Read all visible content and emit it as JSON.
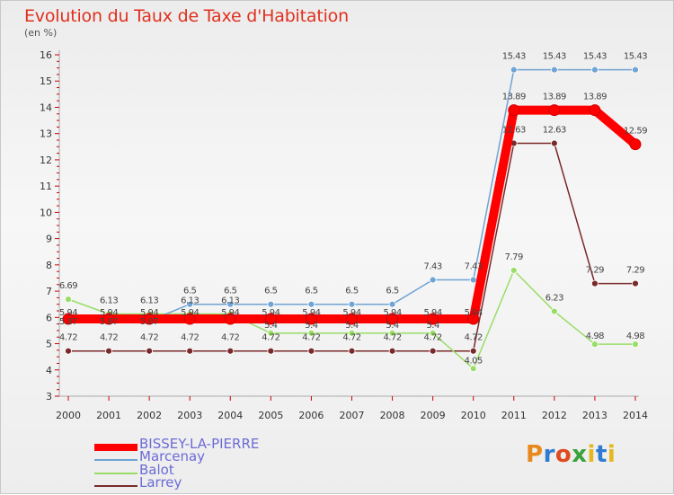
{
  "title": "Evolution du Taux de Taxe d'Habitation",
  "unit_label": "(en %)",
  "logo_text": "Proxiti",
  "chart_data": {
    "type": "line",
    "title": "Evolution du Taux de Taxe d'Habitation",
    "ylabel": "(en %)",
    "xlabel": "",
    "ylim": [
      3,
      16
    ],
    "yticks": [
      3,
      4,
      5,
      6,
      7,
      8,
      9,
      10,
      11,
      12,
      13,
      14,
      15,
      16
    ],
    "grid": false,
    "legend_position": "bottom-left",
    "categories": [
      "2000",
      "2001",
      "2002",
      "2003",
      "2004",
      "2005",
      "2006",
      "2007",
      "2008",
      "2009",
      "2010",
      "2011",
      "2012",
      "2013",
      "2014"
    ],
    "series": [
      {
        "name": "BISSEY-LA-PIERRE",
        "color": "#ff0000",
        "values": [
          5.94,
          5.94,
          5.94,
          5.94,
          5.94,
          5.94,
          5.94,
          5.94,
          5.94,
          5.94,
          5.94,
          13.89,
          13.89,
          13.89,
          12.59
        ],
        "labels": [
          "5.94",
          "5.94",
          "5.94",
          "5.94",
          "5.94",
          "5.94",
          "5.94",
          "5.94",
          "5.94",
          "5.94",
          "5.94",
          "13.89",
          "13.89",
          "13.89",
          "12.59"
        ]
      },
      {
        "name": "Marcenay",
        "color": "#6fa4d4",
        "values": [
          5.87,
          5.87,
          5.87,
          6.5,
          6.5,
          6.5,
          6.5,
          6.5,
          6.5,
          7.43,
          7.43,
          15.43,
          15.43,
          15.43,
          15.43
        ],
        "labels": [
          "5.87",
          "5.87",
          "5.87",
          "6.5",
          "6.5",
          "6.5",
          "6.5",
          "6.5",
          "6.5",
          "7.43",
          "7.43",
          "15.43",
          "15.43",
          "15.43",
          "15.43"
        ]
      },
      {
        "name": "Balot",
        "color": "#99dd66",
        "values": [
          6.69,
          6.13,
          6.13,
          6.13,
          6.13,
          5.4,
          5.4,
          5.4,
          5.4,
          5.4,
          4.05,
          7.79,
          6.23,
          4.98,
          4.98
        ],
        "labels": [
          "6.69",
          "6.13",
          "6.13",
          "6.13",
          "6.13",
          "5.4",
          "5.4",
          "5.4",
          "5.4",
          "5.4",
          "4.05",
          "7.79",
          "6.23",
          "4.98",
          "4.98"
        ]
      },
      {
        "name": "Larrey",
        "color": "#7a2a2a",
        "values": [
          4.72,
          4.72,
          4.72,
          4.72,
          4.72,
          4.72,
          4.72,
          4.72,
          4.72,
          4.72,
          4.72,
          12.63,
          12.63,
          7.29,
          7.29
        ],
        "labels": [
          "4.72",
          "4.72",
          "4.72",
          "4.72",
          "4.72",
          "4.72",
          "4.72",
          "4.72",
          "4.72",
          "4.72",
          "4.72",
          "12.63",
          "12.63",
          "7.29",
          "7.29"
        ]
      }
    ]
  }
}
